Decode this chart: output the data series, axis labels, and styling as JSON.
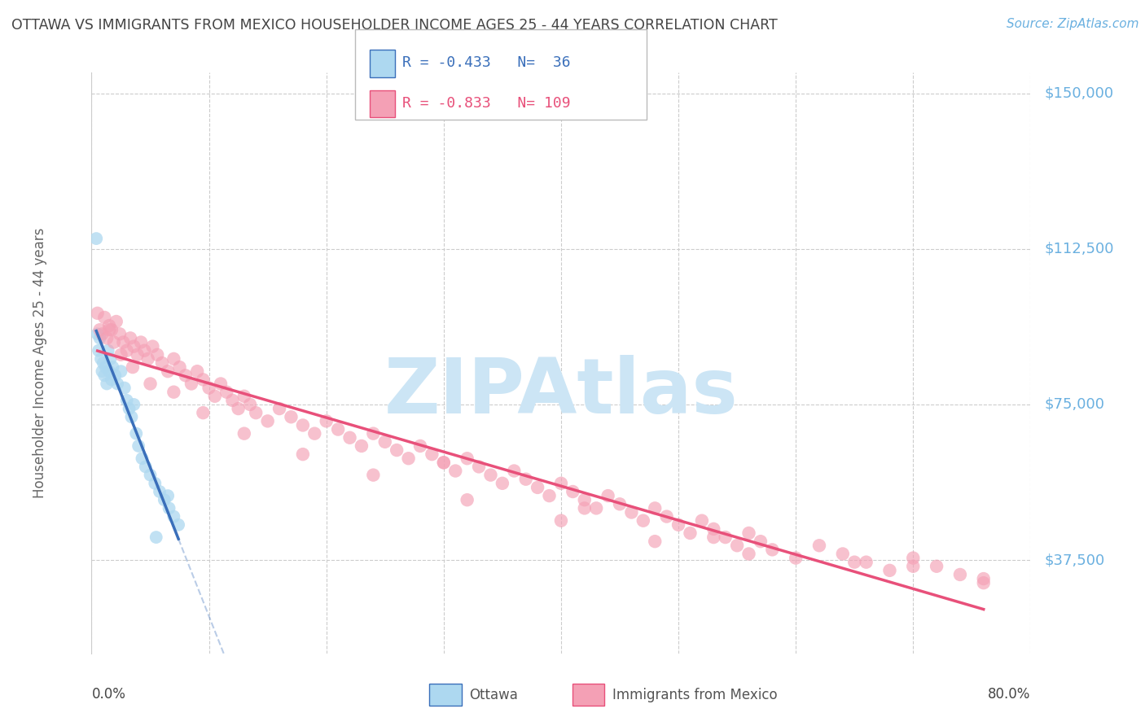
{
  "title": "OTTAWA VS IMMIGRANTS FROM MEXICO HOUSEHOLDER INCOME AGES 25 - 44 YEARS CORRELATION CHART",
  "source": "Source: ZipAtlas.com",
  "ylabel": "Householder Income Ages 25 - 44 years",
  "xmin": 0.0,
  "xmax": 0.8,
  "ymin": 15000,
  "ymax": 155000,
  "yticks": [
    37500,
    75000,
    112500,
    150000
  ],
  "ytick_labels": [
    "$37,500",
    "$75,000",
    "$112,500",
    "$150,000"
  ],
  "xtick_labels": [
    "0.0%",
    "",
    "",
    "",
    "",
    "",
    "",
    "",
    "80.0%"
  ],
  "ottawa_R": -0.433,
  "ottawa_N": 36,
  "mexico_R": -0.833,
  "mexico_N": 109,
  "ottawa_color": "#add8f0",
  "mexico_color": "#f4a0b5",
  "ottawa_line_color": "#3a6fba",
  "mexico_line_color": "#e8507a",
  "watermark": "ZIPAtlas",
  "watermark_color": "#cce5f5",
  "title_color": "#444444",
  "source_color": "#6ab0e0",
  "ytick_color": "#6ab0e0",
  "xtick_color": "#444444",
  "ottawa_x": [
    0.004,
    0.005,
    0.006,
    0.007,
    0.008,
    0.009,
    0.01,
    0.011,
    0.012,
    0.013,
    0.014,
    0.015,
    0.016,
    0.017,
    0.018,
    0.02,
    0.022,
    0.025,
    0.028,
    0.03,
    0.032,
    0.034,
    0.036,
    0.038,
    0.04,
    0.043,
    0.046,
    0.05,
    0.054,
    0.058,
    0.062,
    0.066,
    0.07,
    0.074,
    0.065,
    0.055
  ],
  "ottawa_y": [
    115000,
    92000,
    88000,
    91000,
    86000,
    83000,
    85000,
    82000,
    84000,
    80000,
    88000,
    83000,
    86000,
    81000,
    84000,
    82000,
    80000,
    83000,
    79000,
    76000,
    74000,
    72000,
    75000,
    68000,
    65000,
    62000,
    60000,
    58000,
    56000,
    54000,
    52000,
    50000,
    48000,
    46000,
    53000,
    43000
  ],
  "mexico_x": [
    0.005,
    0.007,
    0.009,
    0.011,
    0.013,
    0.015,
    0.017,
    0.019,
    0.021,
    0.024,
    0.027,
    0.03,
    0.033,
    0.036,
    0.039,
    0.042,
    0.045,
    0.048,
    0.052,
    0.056,
    0.06,
    0.065,
    0.07,
    0.075,
    0.08,
    0.085,
    0.09,
    0.095,
    0.1,
    0.105,
    0.11,
    0.115,
    0.12,
    0.125,
    0.13,
    0.135,
    0.14,
    0.15,
    0.16,
    0.17,
    0.18,
    0.19,
    0.2,
    0.21,
    0.22,
    0.23,
    0.24,
    0.25,
    0.26,
    0.27,
    0.28,
    0.29,
    0.3,
    0.31,
    0.32,
    0.33,
    0.34,
    0.35,
    0.36,
    0.37,
    0.38,
    0.39,
    0.4,
    0.41,
    0.42,
    0.43,
    0.44,
    0.45,
    0.46,
    0.47,
    0.48,
    0.49,
    0.5,
    0.51,
    0.52,
    0.53,
    0.54,
    0.55,
    0.56,
    0.57,
    0.58,
    0.6,
    0.62,
    0.64,
    0.66,
    0.68,
    0.7,
    0.72,
    0.74,
    0.76,
    0.015,
    0.025,
    0.035,
    0.05,
    0.07,
    0.095,
    0.13,
    0.18,
    0.24,
    0.32,
    0.4,
    0.48,
    0.56,
    0.3,
    0.42,
    0.53,
    0.65,
    0.7,
    0.76
  ],
  "mexico_y": [
    97000,
    93000,
    92000,
    96000,
    91000,
    94000,
    93000,
    90000,
    95000,
    92000,
    90000,
    88000,
    91000,
    89000,
    87000,
    90000,
    88000,
    86000,
    89000,
    87000,
    85000,
    83000,
    86000,
    84000,
    82000,
    80000,
    83000,
    81000,
    79000,
    77000,
    80000,
    78000,
    76000,
    74000,
    77000,
    75000,
    73000,
    71000,
    74000,
    72000,
    70000,
    68000,
    71000,
    69000,
    67000,
    65000,
    68000,
    66000,
    64000,
    62000,
    65000,
    63000,
    61000,
    59000,
    62000,
    60000,
    58000,
    56000,
    59000,
    57000,
    55000,
    53000,
    56000,
    54000,
    52000,
    50000,
    53000,
    51000,
    49000,
    47000,
    50000,
    48000,
    46000,
    44000,
    47000,
    45000,
    43000,
    41000,
    44000,
    42000,
    40000,
    38000,
    41000,
    39000,
    37000,
    35000,
    38000,
    36000,
    34000,
    32000,
    93000,
    87000,
    84000,
    80000,
    78000,
    73000,
    68000,
    63000,
    58000,
    52000,
    47000,
    42000,
    39000,
    61000,
    50000,
    43000,
    37000,
    36000,
    33000
  ]
}
